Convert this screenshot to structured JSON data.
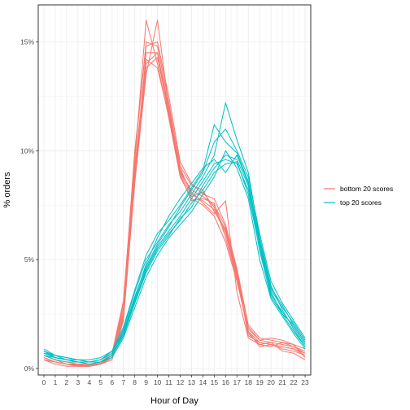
{
  "chart_data": {
    "type": "line",
    "xlabel": "Hour of Day",
    "ylabel": "% orders",
    "x": [
      0,
      1,
      2,
      3,
      4,
      5,
      6,
      7,
      8,
      9,
      10,
      11,
      12,
      13,
      14,
      15,
      16,
      17,
      18,
      19,
      20,
      21,
      22,
      23
    ],
    "x_tick_labels": [
      "0",
      "1",
      "2",
      "3",
      "4",
      "5",
      "6",
      "7",
      "8",
      "9",
      "10",
      "11",
      "12",
      "13",
      "14",
      "15",
      "16",
      "17",
      "18",
      "19",
      "20",
      "21",
      "22",
      "23"
    ],
    "xlim": [
      -0.5,
      23.5
    ],
    "ylim": [
      -0.003,
      0.167
    ],
    "y_ticks": [
      0,
      0.05,
      0.1,
      0.15
    ],
    "y_tick_labels": [
      "0%",
      "5%",
      "10%",
      "15%"
    ],
    "grid": true,
    "legend_position": "right",
    "legend": [
      "bottom 20 scores",
      "top 20 scores"
    ],
    "colors": {
      "bottom 20 scores": "#F8766D",
      "top 20 scores": "#00BFC4"
    },
    "series": [
      {
        "name": "bottom 20 scores",
        "lines": [
          [
            0.005,
            0.003,
            0.002,
            0.0015,
            0.0015,
            0.002,
            0.005,
            0.025,
            0.09,
            0.14,
            0.145,
            0.118,
            0.092,
            0.08,
            0.077,
            0.073,
            0.062,
            0.042,
            0.017,
            0.012,
            0.011,
            0.01,
            0.009,
            0.006
          ],
          [
            0.006,
            0.004,
            0.003,
            0.002,
            0.002,
            0.003,
            0.006,
            0.03,
            0.095,
            0.16,
            0.14,
            0.115,
            0.088,
            0.078,
            0.075,
            0.07,
            0.058,
            0.04,
            0.018,
            0.013,
            0.012,
            0.011,
            0.01,
            0.007
          ],
          [
            0.004,
            0.003,
            0.002,
            0.001,
            0.001,
            0.002,
            0.004,
            0.022,
            0.085,
            0.135,
            0.16,
            0.12,
            0.09,
            0.082,
            0.079,
            0.075,
            0.065,
            0.044,
            0.016,
            0.011,
            0.01,
            0.012,
            0.011,
            0.005
          ],
          [
            0.005,
            0.003,
            0.002,
            0.0015,
            0.0015,
            0.0025,
            0.006,
            0.028,
            0.1,
            0.148,
            0.15,
            0.125,
            0.095,
            0.085,
            0.08,
            0.078,
            0.066,
            0.046,
            0.02,
            0.014,
            0.013,
            0.012,
            0.01,
            0.008
          ],
          [
            0.004,
            0.002,
            0.001,
            0.001,
            0.001,
            0.002,
            0.005,
            0.024,
            0.088,
            0.145,
            0.145,
            0.12,
            0.09,
            0.079,
            0.081,
            0.074,
            0.063,
            0.043,
            0.015,
            0.012,
            0.011,
            0.009,
            0.008,
            0.006
          ],
          [
            0.005,
            0.003,
            0.002,
            0.002,
            0.001,
            0.002,
            0.006,
            0.026,
            0.092,
            0.142,
            0.138,
            0.116,
            0.089,
            0.077,
            0.078,
            0.076,
            0.06,
            0.041,
            0.017,
            0.01,
            0.011,
            0.01,
            0.009,
            0.007
          ],
          [
            0.006,
            0.004,
            0.002,
            0.002,
            0.002,
            0.003,
            0.007,
            0.031,
            0.097,
            0.15,
            0.148,
            0.122,
            0.093,
            0.084,
            0.082,
            0.072,
            0.064,
            0.045,
            0.019,
            0.013,
            0.014,
            0.013,
            0.011,
            0.009
          ],
          [
            0.004,
            0.003,
            0.002,
            0.001,
            0.001,
            0.002,
            0.005,
            0.023,
            0.086,
            0.138,
            0.143,
            0.117,
            0.091,
            0.081,
            0.076,
            0.071,
            0.077,
            0.035,
            0.014,
            0.011,
            0.012,
            0.008,
            0.007,
            0.004
          ]
        ]
      },
      {
        "name": "top 20 scores",
        "lines": [
          [
            0.008,
            0.005,
            0.004,
            0.003,
            0.003,
            0.003,
            0.006,
            0.015,
            0.03,
            0.045,
            0.055,
            0.062,
            0.068,
            0.076,
            0.082,
            0.09,
            0.094,
            0.095,
            0.08,
            0.055,
            0.035,
            0.025,
            0.02,
            0.012
          ],
          [
            0.007,
            0.006,
            0.004,
            0.004,
            0.003,
            0.004,
            0.007,
            0.018,
            0.035,
            0.05,
            0.058,
            0.066,
            0.072,
            0.08,
            0.088,
            0.098,
            0.122,
            0.105,
            0.09,
            0.06,
            0.038,
            0.027,
            0.018,
            0.01
          ],
          [
            0.009,
            0.006,
            0.005,
            0.004,
            0.004,
            0.005,
            0.008,
            0.016,
            0.032,
            0.048,
            0.06,
            0.07,
            0.078,
            0.085,
            0.092,
            0.096,
            0.09,
            0.098,
            0.085,
            0.058,
            0.036,
            0.028,
            0.021,
            0.013
          ],
          [
            0.006,
            0.004,
            0.003,
            0.003,
            0.002,
            0.003,
            0.005,
            0.014,
            0.028,
            0.042,
            0.052,
            0.06,
            0.066,
            0.072,
            0.08,
            0.088,
            0.1,
            0.092,
            0.078,
            0.05,
            0.032,
            0.024,
            0.016,
            0.009
          ],
          [
            0.008,
            0.005,
            0.004,
            0.003,
            0.003,
            0.004,
            0.007,
            0.017,
            0.033,
            0.047,
            0.057,
            0.065,
            0.074,
            0.082,
            0.09,
            0.104,
            0.11,
            0.1,
            0.088,
            0.062,
            0.04,
            0.03,
            0.022,
            0.014
          ],
          [
            0.007,
            0.005,
            0.004,
            0.003,
            0.003,
            0.003,
            0.006,
            0.015,
            0.031,
            0.046,
            0.056,
            0.063,
            0.07,
            0.078,
            0.086,
            0.094,
            0.096,
            0.094,
            0.082,
            0.057,
            0.034,
            0.026,
            0.019,
            0.011
          ],
          [
            0.008,
            0.006,
            0.005,
            0.004,
            0.003,
            0.004,
            0.008,
            0.019,
            0.036,
            0.052,
            0.062,
            0.068,
            0.075,
            0.083,
            0.091,
            0.112,
            0.104,
            0.099,
            0.086,
            0.059,
            0.037,
            0.029,
            0.02,
            0.012
          ],
          [
            0.006,
            0.005,
            0.004,
            0.003,
            0.002,
            0.003,
            0.006,
            0.016,
            0.03,
            0.044,
            0.054,
            0.061,
            0.069,
            0.074,
            0.084,
            0.092,
            0.098,
            0.096,
            0.084,
            0.054,
            0.033,
            0.025,
            0.017,
            0.01
          ]
        ]
      }
    ]
  }
}
